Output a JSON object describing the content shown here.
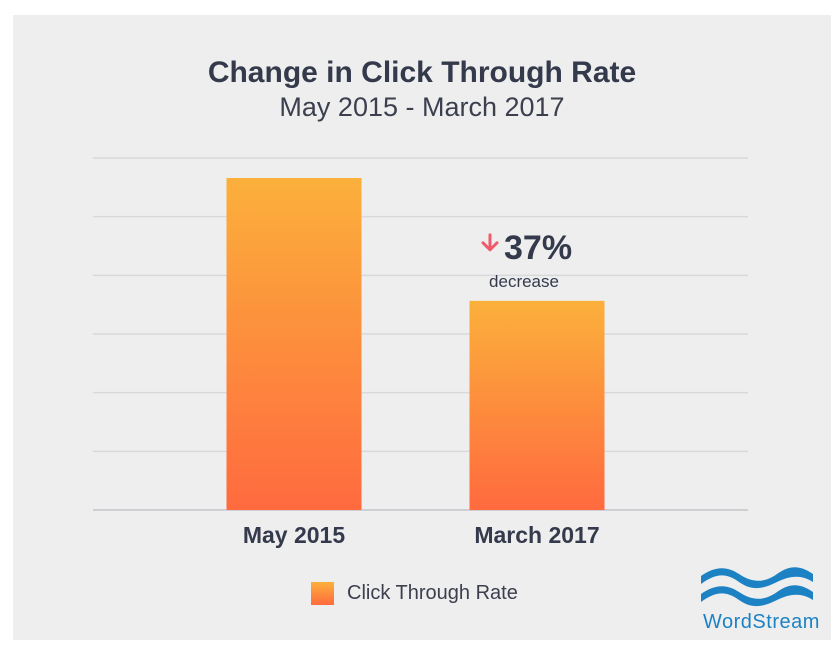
{
  "chart_data": {
    "type": "bar",
    "title": "Change in Click Through Rate",
    "subtitle": "May 2015 - March 2017",
    "categories": [
      "May 2015",
      "March 2017"
    ],
    "series": [
      {
        "name": "Click Through Rate",
        "values": [
          1.0,
          0.63
        ]
      }
    ],
    "value_unit": "relative to May 2015",
    "ylim": [
      0,
      1.1
    ],
    "grid": true,
    "legend_placement": "bottom",
    "colors": {
      "bar_top": "#fbb03b",
      "bar_bottom": "#ff6a3f",
      "arrow": "#ee5c6c",
      "text": "#343a4b",
      "grid": "#d9d9dc"
    },
    "annotation": {
      "category": "March 2017",
      "arrow": "down-arrow-icon",
      "value": "37%",
      "label": "decrease"
    }
  },
  "brand": {
    "name": "WordStream",
    "logo_icon": "wordstream-wave-icon"
  }
}
